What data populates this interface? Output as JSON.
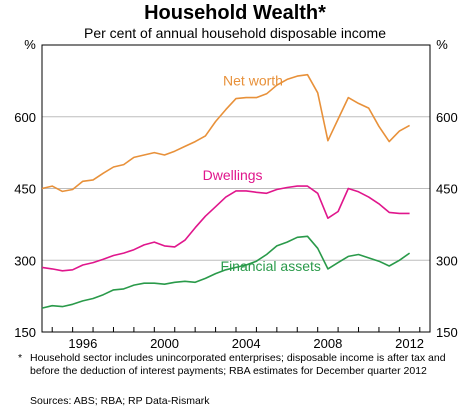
{
  "title": "Household Wealth*",
  "subtitle": "Per cent of annual household disposable income",
  "footnote_mark": "*",
  "footnote": "Household sector includes unincorporated enterprises; disposable income is after tax and before the deduction of interest payments; RBA estimates for December quarter 2012",
  "sources": "Sources: ABS; RBA; RP Data-Rismark",
  "chart_data": {
    "type": "line",
    "ylabel_left": "%",
    "ylabel_right": "%",
    "ylim": [
      150,
      750
    ],
    "yticks": [
      150,
      300,
      450,
      600
    ],
    "xlim": [
      1994.5,
      2013.5
    ],
    "xticks": [
      1996,
      2000,
      2004,
      2008,
      2012
    ],
    "grid": "horizontal",
    "colors": {
      "net_worth": "#e8913a",
      "dwellings": "#e0168c",
      "financial_assets": "#2a9a4a",
      "grid": "#bdbdbd"
    },
    "series": [
      {
        "name": "Net worth",
        "key": "net_worth",
        "x": [
          1994.5,
          1995.0,
          1995.5,
          1996.0,
          1996.5,
          1997.0,
          1997.5,
          1998.0,
          1998.5,
          1999.0,
          1999.5,
          2000.0,
          2000.5,
          2001.0,
          2001.5,
          2002.0,
          2002.5,
          2003.0,
          2003.5,
          2004.0,
          2004.5,
          2005.0,
          2005.5,
          2006.0,
          2006.5,
          2007.0,
          2007.5,
          2008.0,
          2008.5,
          2009.0,
          2009.5,
          2010.0,
          2010.5,
          2011.0,
          2011.5,
          2012.0,
          2012.5
        ],
        "values": [
          450,
          455,
          444,
          448,
          465,
          468,
          482,
          495,
          500,
          515,
          520,
          525,
          520,
          528,
          538,
          548,
          560,
          590,
          615,
          638,
          640,
          640,
          648,
          666,
          678,
          685,
          688,
          650,
          550,
          595,
          640,
          628,
          618,
          580,
          548,
          570,
          582
        ]
      },
      {
        "name": "Dwellings",
        "key": "dwellings",
        "x": [
          1994.5,
          1995.0,
          1995.5,
          1996.0,
          1996.5,
          1997.0,
          1997.5,
          1998.0,
          1998.5,
          1999.0,
          1999.5,
          2000.0,
          2000.5,
          2001.0,
          2001.5,
          2002.0,
          2002.5,
          2003.0,
          2003.5,
          2004.0,
          2004.5,
          2005.0,
          2005.5,
          2006.0,
          2006.5,
          2007.0,
          2007.5,
          2008.0,
          2008.5,
          2009.0,
          2009.5,
          2010.0,
          2010.5,
          2011.0,
          2011.5,
          2012.0,
          2012.5
        ],
        "values": [
          285,
          282,
          278,
          280,
          290,
          295,
          302,
          310,
          315,
          322,
          332,
          338,
          330,
          328,
          342,
          368,
          392,
          412,
          432,
          445,
          445,
          442,
          440,
          448,
          452,
          455,
          455,
          440,
          388,
          402,
          450,
          443,
          432,
          418,
          400,
          398,
          398
        ]
      },
      {
        "name": "Financial assets",
        "key": "financial_assets",
        "x": [
          1994.5,
          1995.0,
          1995.5,
          1996.0,
          1996.5,
          1997.0,
          1997.5,
          1998.0,
          1998.5,
          1999.0,
          1999.5,
          2000.0,
          2000.5,
          2001.0,
          2001.5,
          2002.0,
          2002.5,
          2003.0,
          2003.5,
          2004.0,
          2004.5,
          2005.0,
          2005.5,
          2006.0,
          2006.5,
          2007.0,
          2007.5,
          2008.0,
          2008.5,
          2009.0,
          2009.5,
          2010.0,
          2010.5,
          2011.0,
          2011.5,
          2012.0,
          2012.5
        ],
        "values": [
          200,
          205,
          203,
          208,
          215,
          220,
          228,
          238,
          240,
          248,
          252,
          252,
          250,
          254,
          256,
          254,
          262,
          272,
          280,
          285,
          290,
          298,
          312,
          330,
          338,
          348,
          350,
          325,
          282,
          295,
          308,
          312,
          305,
          298,
          288,
          300,
          315
        ]
      }
    ]
  }
}
